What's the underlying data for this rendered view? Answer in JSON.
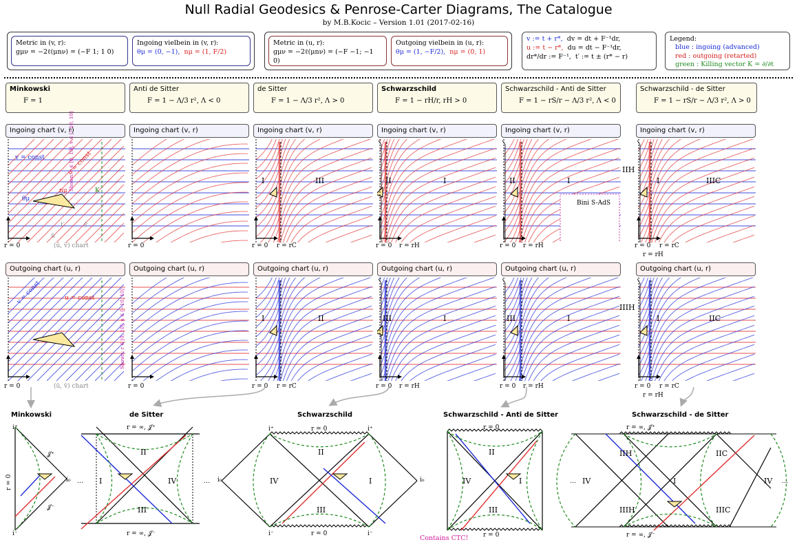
{
  "title": "Null Radial Geodesics & Penrose-Carter Diagrams, The Catalogue",
  "subtitle": "by M.B.Kocic  –  Version 1.01 (2017-02-16)",
  "metric_v": {
    "label": "Metric in (v, r):",
    "formula": "gμν = −2ℓ(μnν) = (−F 1; 1 0)"
  },
  "vielbein_in": {
    "label": "Ingoing vielbein in (v, r):",
    "theta": "θμ = (0, −1),",
    "n": "nμ = (1, F/2)"
  },
  "metric_u": {
    "label": "Metric in (u, r):",
    "formula": "gμν = −2ℓ(μnν) = (−F −1; −1 0)"
  },
  "vielbein_out": {
    "label": "Outgoing vielbein in (u, r):",
    "theta": "θμ = (1, −F/2),",
    "n": "nμ = (0, 1)"
  },
  "coords": {
    "v_def": "v := t + r*,",
    "dv": "dv = dt + F⁻¹dr,",
    "u_def": "u := t − r*,",
    "du": "du = dt − F⁻¹dr,",
    "drstar": "dr*/dr := F⁻¹,",
    "tprime": "t′ := t ± (r* − r)"
  },
  "legend": {
    "title": "Legend:",
    "blue": "blue : ingoing (advanced)",
    "red": "red : outgoing (retarted)",
    "green": "green : Killing vector K = ∂/∂t"
  },
  "colors": {
    "blue": "#1d2ad8",
    "red": "#e03030",
    "green": "#1f8a1f",
    "cream": "#fdfbe8"
  },
  "spacetimes": [
    {
      "name": "Minkowski",
      "eq": "F = 1"
    },
    {
      "name": "Anti de Sitter",
      "eq": "F = 1 − Λ/3 r²,   Λ < 0"
    },
    {
      "name": "de Sitter",
      "eq": "F = 1 − Λ/3 r²,   Λ > 0"
    },
    {
      "name": "Schwarzschild",
      "eq": "F = 1 − rH/r,   rH > 0"
    },
    {
      "name": "Schwarzschild - Anti de Sitter",
      "eq": "F = 1 − rS/r − Λ/3 r²,   Λ < 0"
    },
    {
      "name": "Schwarzschild - de Sitter",
      "eq": "F = 1 − rS/r − Λ/3 r²,   Λ > 0"
    }
  ],
  "ingoing_label": "Ingoing chart (v, r)",
  "outgoing_label": "Outgoing chart (u, r)",
  "axis": {
    "r0": "r = 0",
    "v": "v",
    "u": "u",
    "r": "r",
    "rinf": "r = ∞"
  },
  "horizons": {
    "rc": "r = rC",
    "rh": "r = rH"
  },
  "mink_in": {
    "v_const": "v = const",
    "u_const": "u = const",
    "theta": "θμ",
    "n": "nμ",
    "k": "K",
    "tprime": "t′",
    "vbar": "v̄",
    "ubar": "ū",
    "chart": "(ū, v̄) chart",
    "shown": "Shown: r ∈ [0, 10],   v ∈ [−10, 10]"
  },
  "mink_out": {
    "v_const": "v = const",
    "u_const": "u = const",
    "chart": "(ū, v̄) chart",
    "shown": "Shown: r ∈ [0, 10],   u ∈ [−10, 10]"
  },
  "regions": {
    "I": "I",
    "II": "II",
    "III": "III",
    "IV": "IV",
    "IIH": "IIH",
    "IIC": "IIC",
    "IIIH": "IIIH",
    "IIIC": "IIIC",
    "dots": "…"
  },
  "bini": "Bini S-AdS",
  "penrose": [
    {
      "name": "Minkowski"
    },
    {
      "name": "de Sitter"
    },
    {
      "name": "Schwarzschild"
    },
    {
      "name": "Schwarzschild - Anti de Sitter"
    },
    {
      "name": "Schwarzschild - de Sitter"
    }
  ],
  "pen_labels": {
    "iplus": "i⁺",
    "iminus": "i⁻",
    "i0": "i₀",
    "scri_plus": "𝒥⁺",
    "scri_minus": "𝒥⁻",
    "r_inf_scri_plus": "r = ∞, 𝒥⁺",
    "r_inf_scri_minus": "r = ∞, 𝒥⁻",
    "r_inf_scri": "r = ∞, 𝒥",
    "r0": "r = 0",
    "l": "ℓ",
    "n": "n",
    "K": "K"
  },
  "ctc": "Contains CTC!"
}
